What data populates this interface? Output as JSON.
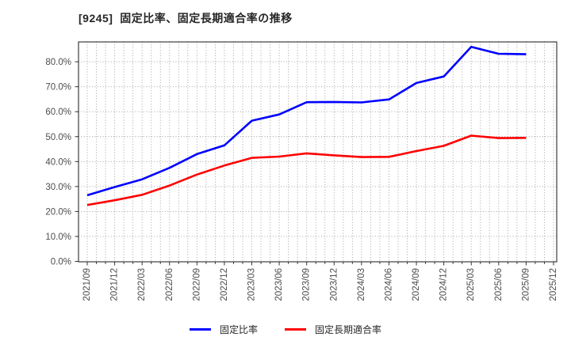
{
  "header": {
    "title": "[9245]  固定比率、固定長期適合率の推移"
  },
  "chart_data": {
    "type": "line",
    "title": "[9245]  固定比率、固定長期適合率の推移",
    "x_tick_labels": [
      "2021/09",
      "2021/12",
      "2022/03",
      "2022/06",
      "2022/09",
      "2022/12",
      "2023/03",
      "2023/06",
      "2023/09",
      "2023/12",
      "2024/03",
      "2024/06",
      "2024/09",
      "2024/12",
      "2025/03",
      "2025/06",
      "2025/09",
      "2025/12"
    ],
    "y_tick_labels": [
      "0.0%",
      "10.0%",
      "20.0%",
      "30.0%",
      "40.0%",
      "50.0%",
      "60.0%",
      "70.0%",
      "80.0%"
    ],
    "ylim": [
      0,
      88
    ],
    "y_unit": "%",
    "grid": "dotted, major+minor, both axes",
    "legend_position": "bottom-center",
    "series": [
      {
        "name": "固定比率",
        "color": "#0000ff",
        "values": [
          26.5,
          29.8,
          32.9,
          37.5,
          43.0,
          46.5,
          56.4,
          58.9,
          63.8,
          63.9,
          63.7,
          64.9,
          71.5,
          74.1,
          86.0,
          83.2,
          83.0
        ]
      },
      {
        "name": "固定長期適合率",
        "color": "#ff0000",
        "values": [
          22.6,
          24.5,
          26.7,
          30.4,
          34.8,
          38.4,
          41.5,
          42.0,
          43.3,
          42.5,
          41.8,
          41.9,
          44.2,
          46.3,
          50.4,
          49.4,
          49.5
        ]
      }
    ],
    "axis_color": "#3c3c3c",
    "grid_color": "#999999",
    "tick_label_color": "#4d4d4d"
  }
}
